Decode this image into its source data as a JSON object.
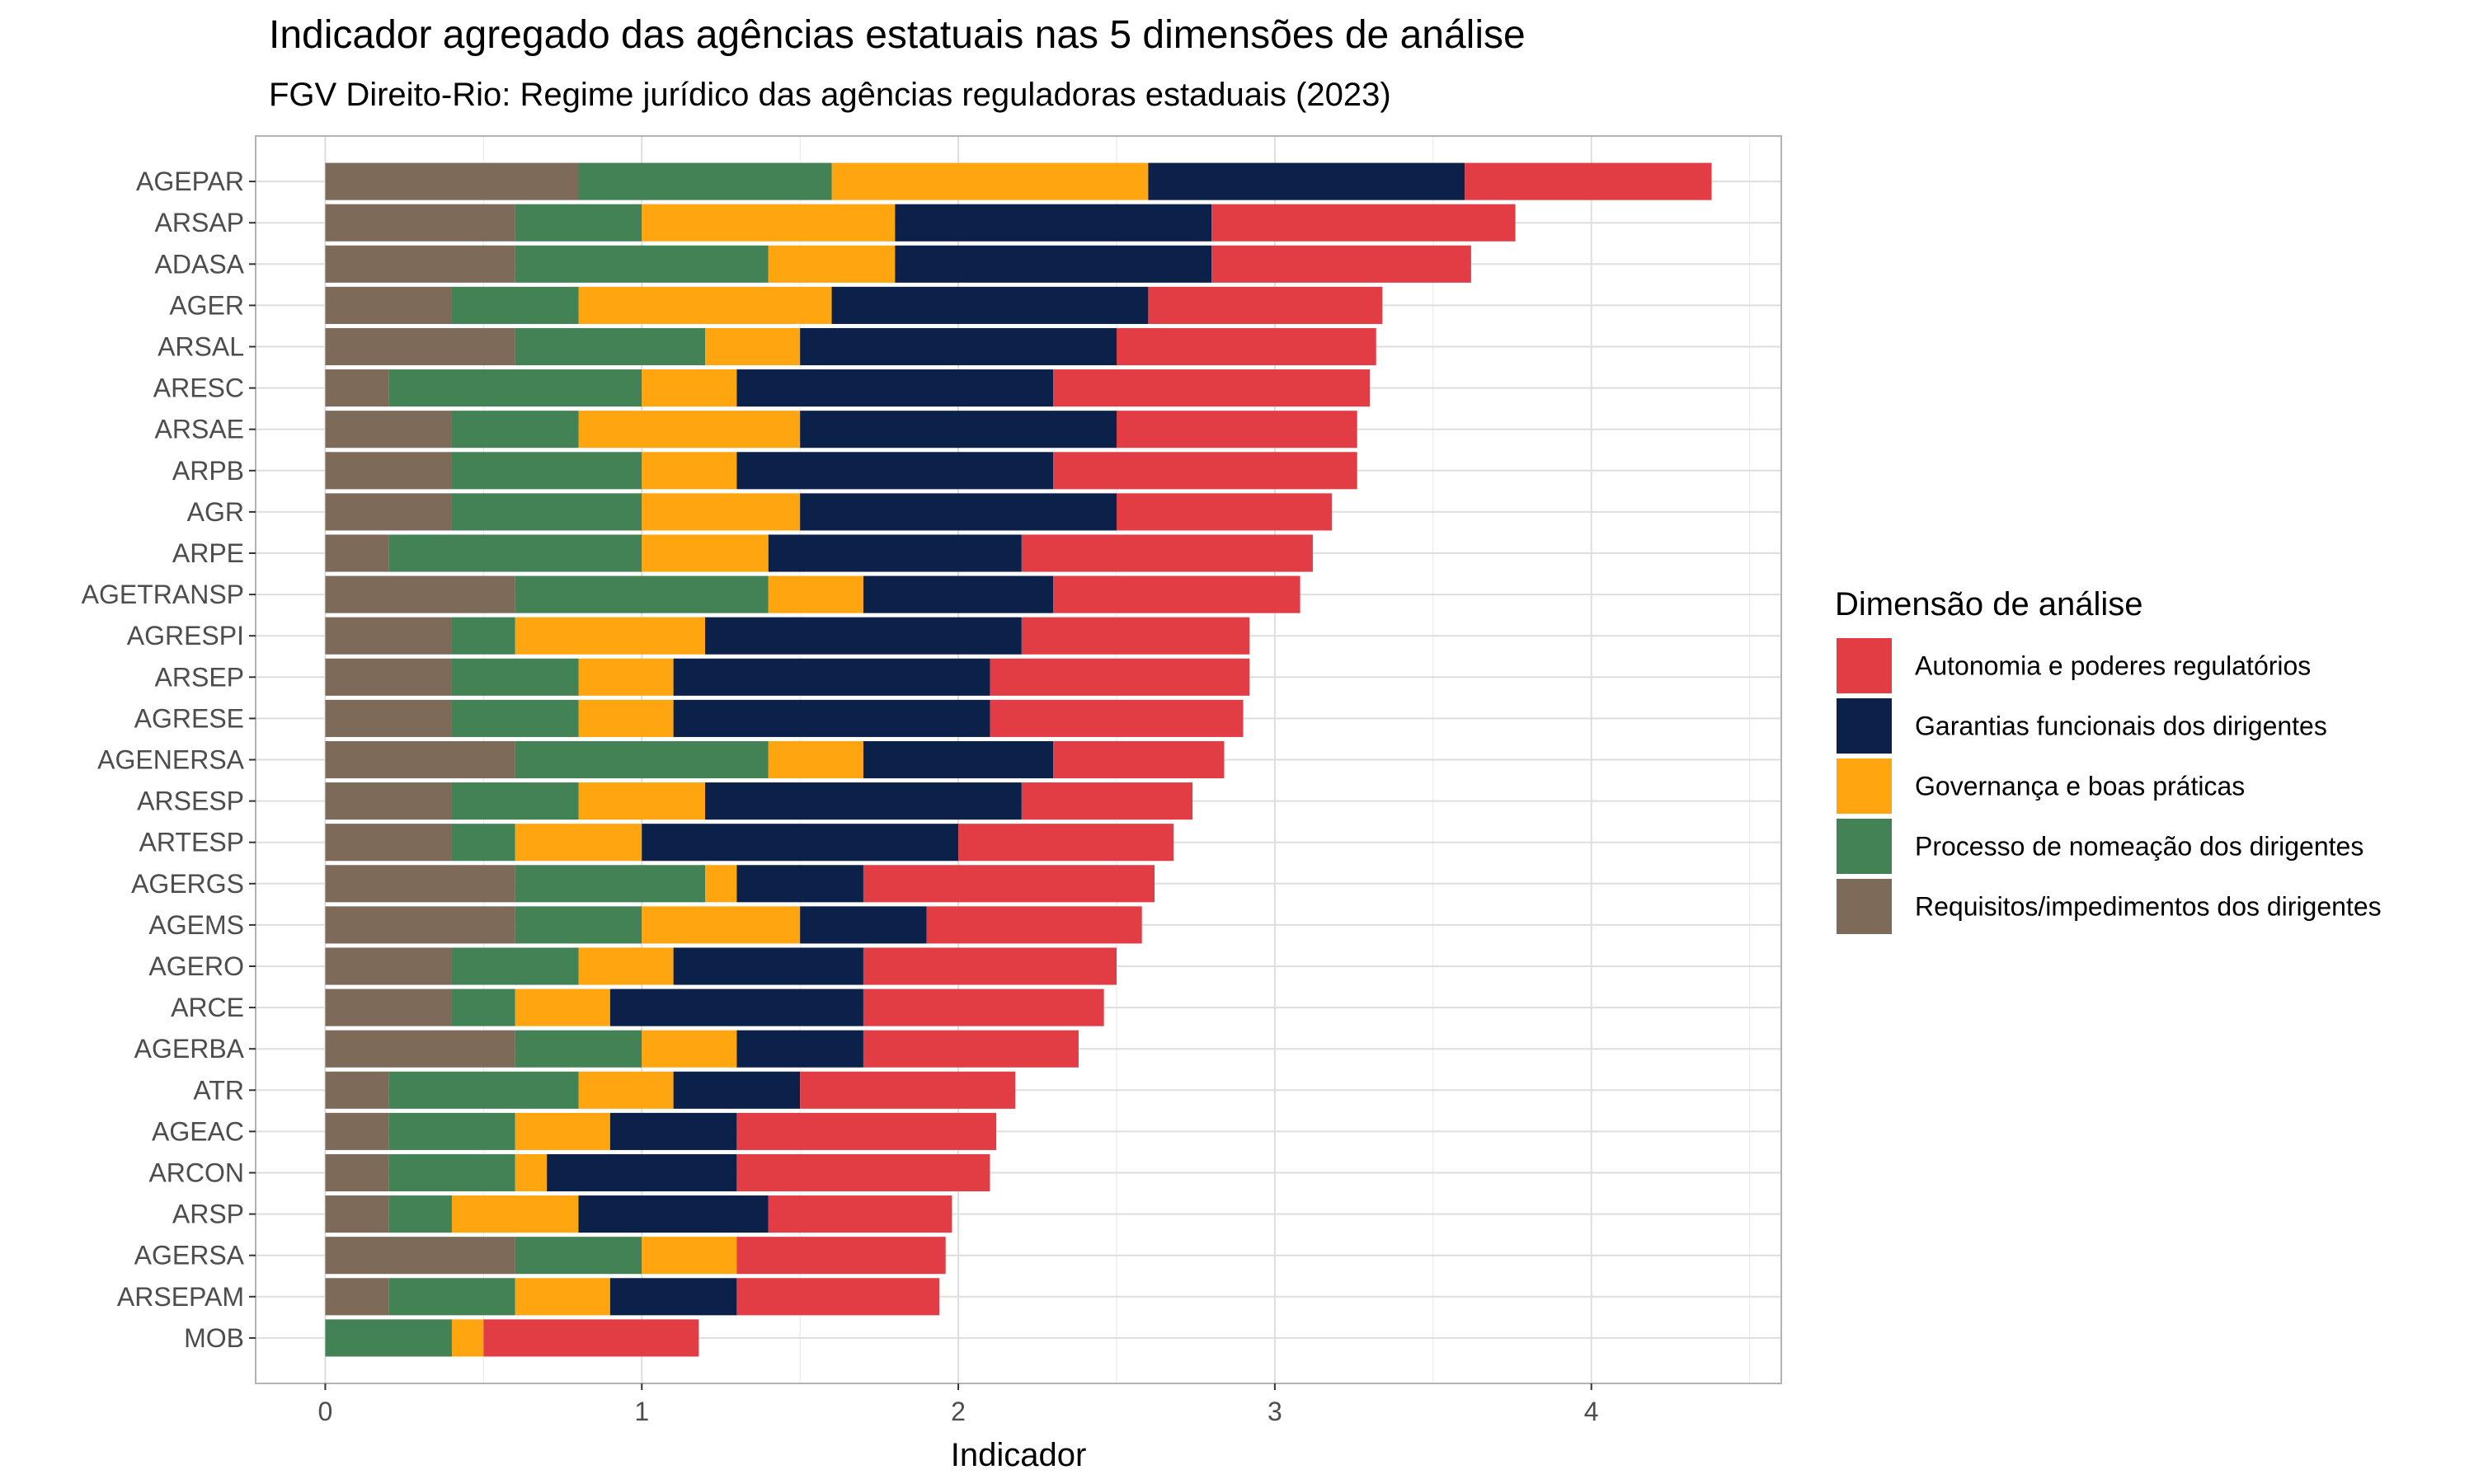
{
  "chart_data": {
    "type": "bar",
    "orientation": "horizontal",
    "stacked": true,
    "title": "Indicador agregado das agências estatuais nas 5 dimensões de análise",
    "subtitle": "FGV Direito-Rio: Regime jurídico das agências reguladoras estaduais (2023)",
    "xlabel": "Indicador",
    "ylabel": "",
    "xlim": [
      -0.22,
      4.6
    ],
    "xticks": [
      "0",
      "1",
      "2",
      "3",
      "4"
    ],
    "grid": true,
    "legend": {
      "title": "Dimensão de análise",
      "position": "right",
      "entries": [
        "Autonomia e poderes regulatórios",
        "Garantias funcionais dos dirigentes",
        "Governança e boas práticas",
        "Processo de nomeação dos dirigentes",
        "Requisitos/impedimentos dos dirigentes"
      ]
    },
    "categories": [
      "AGEPAR",
      "ARSAP",
      "ADASA",
      "AGER",
      "ARSAL",
      "ARESC",
      "ARSAE",
      "ARPB",
      "AGR",
      "ARPE",
      "AGETRANSP",
      "AGRESPI",
      "ARSEP",
      "AGRESE",
      "AGENERSA",
      "ARSESP",
      "ARTESP",
      "AGERGS",
      "AGEMS",
      "AGERO",
      "ARCE",
      "AGERBA",
      "ATR",
      "AGEAC",
      "ARCON",
      "ARSP",
      "AGERSA",
      "ARSEPAM",
      "MOB"
    ],
    "series": [
      {
        "name": "Requisitos/impedimentos dos dirigentes",
        "color": "#7d6a58",
        "values": [
          0.8,
          0.6,
          0.6,
          0.4,
          0.6,
          0.2,
          0.4,
          0.4,
          0.4,
          0.2,
          0.6,
          0.4,
          0.4,
          0.4,
          0.6,
          0.4,
          0.4,
          0.6,
          0.6,
          0.4,
          0.4,
          0.6,
          0.2,
          0.2,
          0.2,
          0.2,
          0.6,
          0.2,
          0.0
        ]
      },
      {
        "name": "Processo de nomeação dos dirigentes",
        "color": "#438254",
        "values": [
          0.8,
          0.4,
          0.8,
          0.4,
          0.6,
          0.8,
          0.4,
          0.6,
          0.6,
          0.8,
          0.8,
          0.2,
          0.4,
          0.4,
          0.8,
          0.4,
          0.2,
          0.6,
          0.4,
          0.4,
          0.2,
          0.4,
          0.6,
          0.4,
          0.4,
          0.2,
          0.4,
          0.4,
          0.4
        ]
      },
      {
        "name": "Governança e boas práticas",
        "color": "#ffa510",
        "values": [
          1.0,
          0.8,
          0.4,
          0.8,
          0.3,
          0.3,
          0.7,
          0.3,
          0.5,
          0.4,
          0.3,
          0.6,
          0.3,
          0.3,
          0.3,
          0.4,
          0.4,
          0.1,
          0.5,
          0.3,
          0.3,
          0.3,
          0.3,
          0.3,
          0.1,
          0.4,
          0.3,
          0.3,
          0.1
        ]
      },
      {
        "name": "Garantias funcionais dos dirigentes",
        "color": "#0c214a",
        "values": [
          1.0,
          1.0,
          1.0,
          1.0,
          1.0,
          1.0,
          1.0,
          1.0,
          1.0,
          0.8,
          0.6,
          1.0,
          1.0,
          1.0,
          0.6,
          1.0,
          1.0,
          0.4,
          0.4,
          0.6,
          0.8,
          0.4,
          0.4,
          0.4,
          0.6,
          0.6,
          0.0,
          0.4,
          0.0
        ]
      },
      {
        "name": "Autonomia e poderes regulatórios",
        "color": "#e23c45",
        "values": [
          0.78,
          0.96,
          0.82,
          0.74,
          0.82,
          1.0,
          0.76,
          0.96,
          0.68,
          0.92,
          0.78,
          0.72,
          0.82,
          0.8,
          0.54,
          0.54,
          0.68,
          0.92,
          0.68,
          0.8,
          0.76,
          0.68,
          0.68,
          0.82,
          0.8,
          0.58,
          0.66,
          0.64,
          0.68
        ]
      }
    ]
  }
}
